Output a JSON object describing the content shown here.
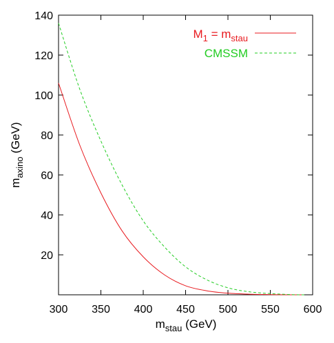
{
  "chart_data": {
    "type": "line",
    "xlabel": {
      "base": "m",
      "sub": "stau",
      "rest": " (GeV)"
    },
    "ylabel": {
      "base": "m",
      "sub": "axino",
      "rest": " (GeV)"
    },
    "xlim": [
      300,
      600
    ],
    "ylim": [
      0,
      140
    ],
    "xticks": [
      300,
      350,
      400,
      450,
      500,
      550,
      600
    ],
    "yticks": [
      20,
      40,
      60,
      80,
      100,
      120,
      140
    ],
    "legend_position": "top-right",
    "series": [
      {
        "name": {
          "base": "M",
          "sub1": "1",
          "mid": " = m",
          "sub2": "stau"
        },
        "color": "#e8191e",
        "dash": "solid",
        "x": [
          300,
          325,
          350,
          375,
          400,
          425,
          450,
          475,
          500,
          525,
          550,
          575,
          590
        ],
        "y": [
          106,
          75,
          51,
          32,
          19,
          10,
          4.5,
          2,
          0.8,
          0.3,
          0.1,
          0,
          0
        ]
      },
      {
        "name": {
          "text": "CMSSM"
        },
        "color": "#22cc22",
        "dash": "dashed",
        "x": [
          300,
          325,
          350,
          375,
          400,
          425,
          450,
          475,
          500,
          525,
          550,
          575,
          590
        ],
        "y": [
          136,
          103,
          77,
          55,
          37,
          24,
          14,
          7.5,
          3.5,
          1.5,
          0.6,
          0.1,
          0
        ]
      }
    ]
  }
}
